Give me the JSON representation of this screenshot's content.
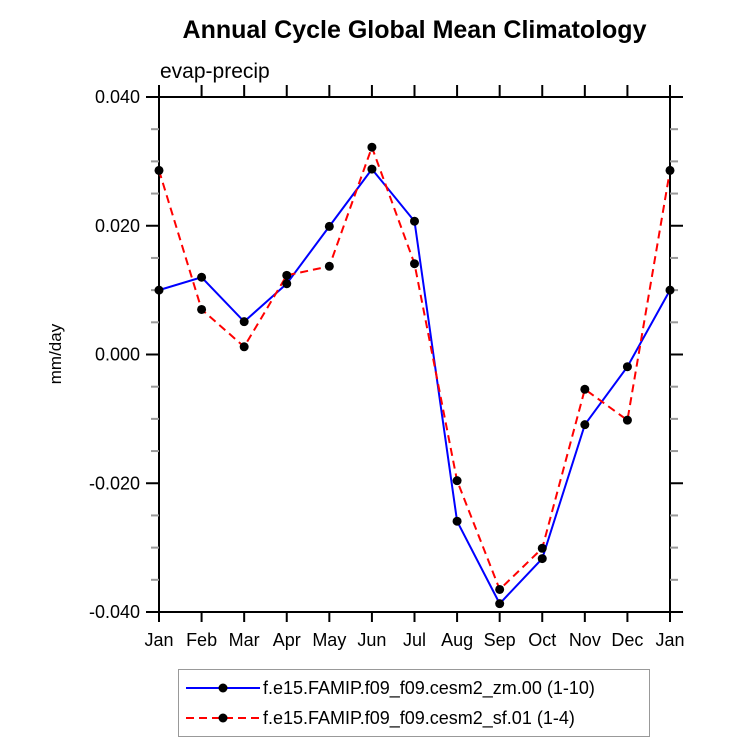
{
  "colors": {
    "background": "#ffffff",
    "axis": "#000000",
    "minor_tick": "#999999",
    "marker": "#000000",
    "series_blue": "#0000ff",
    "series_red": "#ff0000",
    "legend_border": "#999999"
  },
  "chart_data": {
    "type": "line",
    "title": "Annual Cycle Global Mean Climatology",
    "subtitle": "evap-precip",
    "ylabel": "mm/day",
    "x_categories": [
      "Jan",
      "Feb",
      "Mar",
      "Apr",
      "May",
      "Jun",
      "Jul",
      "Aug",
      "Sep",
      "Oct",
      "Nov",
      "Dec",
      "Jan"
    ],
    "ylim": [
      -0.04,
      0.04
    ],
    "y_major_ticks": [
      {
        "value": 0.04,
        "label": "0.040"
      },
      {
        "value": 0.02,
        "label": "0.020"
      },
      {
        "value": 0.0,
        "label": "0.000"
      },
      {
        "value": -0.02,
        "label": "-0.020"
      },
      {
        "value": -0.04,
        "label": "-0.040"
      }
    ],
    "y_major_step": 0.02,
    "y_minor_step": 0.005,
    "grid": "off",
    "legend_position": "bottom",
    "series": [
      {
        "name": "f.e15.FAMIP.f09_f09.cesm2_zm.00 (1-10)",
        "color": "#0000ff",
        "line_style": "solid",
        "marker": "black-dot",
        "values": [
          0.01,
          0.012,
          0.0051,
          0.011,
          0.0199,
          0.0288,
          0.0207,
          -0.0259,
          -0.0387,
          -0.0317,
          -0.0109,
          -0.0019,
          0.01
        ]
      },
      {
        "name": "f.e15.FAMIP.f09_f09.cesm2_sf.01 (1-4)",
        "color": "#ff0000",
        "line_style": "dashed",
        "marker": "black-dot",
        "values": [
          0.0286,
          0.007,
          0.0012,
          0.0123,
          0.0137,
          0.0322,
          0.0141,
          -0.0196,
          -0.0365,
          -0.0301,
          -0.0054,
          -0.0102,
          0.0286
        ]
      }
    ]
  }
}
